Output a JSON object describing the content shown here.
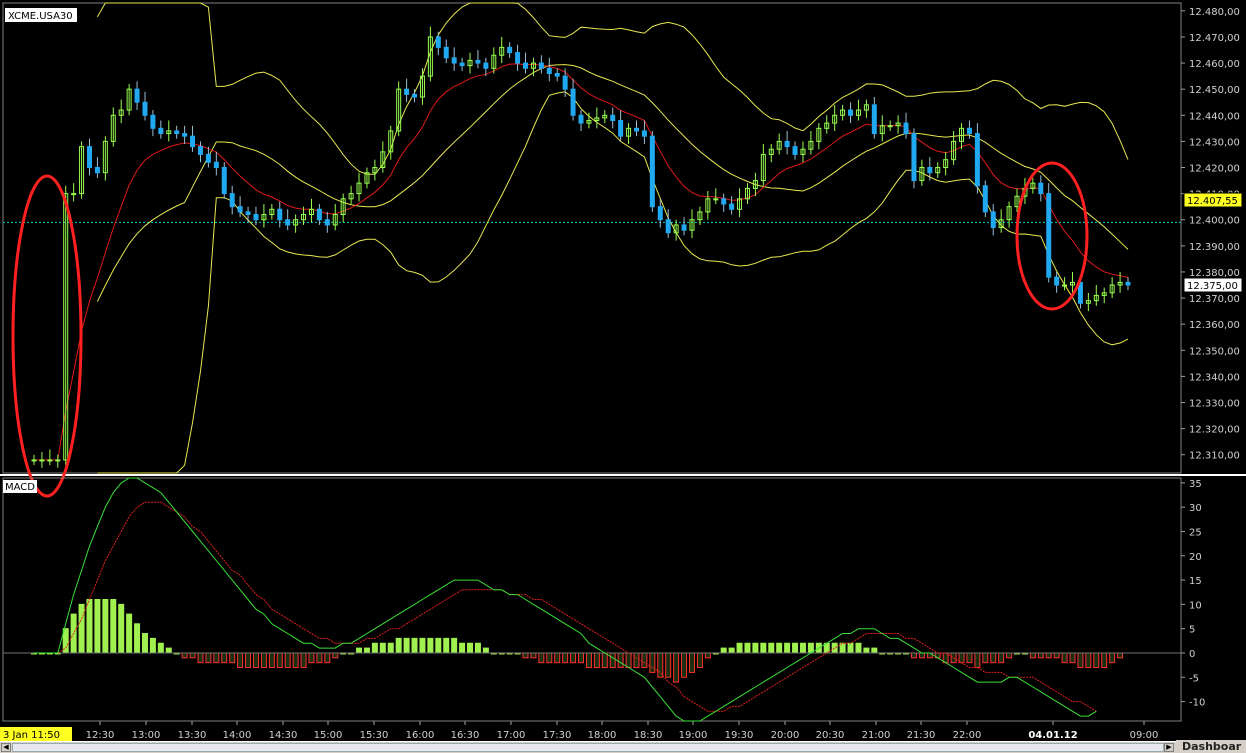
{
  "symbol": "XCME.USA30",
  "indicator_label": "MACD",
  "date_label": "3 Jan 11:50",
  "dashboard_label": "Dashboar",
  "colors": {
    "background": "#000000",
    "bull_candle": "#98ff50",
    "bear_candle": "#20a8f0",
    "ema": "#e01818",
    "bollinger": "#e8e850",
    "reference_line": "#00c8c8",
    "axis_text": "#d0d0d0",
    "macd_line": "#38e038",
    "signal_line": "#e02020",
    "hist_positive": "#a0f050",
    "hist_negative": "#ff3030",
    "annotation": "#ff2020"
  },
  "chart_data": [
    {
      "type": "candlestick",
      "title": "XCME.USA30",
      "ylim": [
        12303,
        12483
      ],
      "yticks": [
        "12.480,00",
        "12.470,00",
        "12.460,00",
        "12.450,00",
        "12.440,00",
        "12.430,00",
        "12.420,00",
        "12.410,00",
        "12.400,00",
        "12.390,00",
        "12.380,00",
        "12.370,00",
        "12.360,00",
        "12.350,00",
        "12.340,00",
        "12.330,00",
        "12.320,00",
        "12.310,00"
      ],
      "xticks": [
        "3 Jan 11:50",
        "12:30",
        "13:00",
        "13:30",
        "14:00",
        "14:30",
        "15:00",
        "15:30",
        "16:00",
        "16:30",
        "17:00",
        "17:30",
        "18:00",
        "18:30",
        "19:00",
        "19:30",
        "20:00",
        "20:30",
        "21:00",
        "21:30",
        "22:00",
        "04.01.12",
        "09:00"
      ],
      "reference_line": 12399,
      "price_labels": [
        {
          "value": 12407.55,
          "text": "12.407,55",
          "style": "yellow"
        },
        {
          "value": 12375.0,
          "text": "12.375,00",
          "style": "white"
        }
      ],
      "series": [
        {
          "name": "Price",
          "kind": "candles",
          "close": [
            12308,
            12308,
            12308,
            12308,
            12410,
            12410,
            12428,
            12420,
            12418,
            12430,
            12440,
            12442,
            12450,
            12445,
            12440,
            12435,
            12433,
            12434,
            12433,
            12432,
            12428,
            12425,
            12422,
            12420,
            12410,
            12405,
            12403,
            12402,
            12400,
            12402,
            12404,
            12400,
            12398,
            12400,
            12402,
            12404,
            12400,
            12398,
            12402,
            12408,
            12410,
            12414,
            12418,
            12420,
            12426,
            12434,
            12450,
            12448,
            12447,
            12455,
            12470,
            12466,
            12462,
            12460,
            12459,
            12461,
            12460,
            12458,
            12463,
            12466,
            12464,
            12460,
            12458,
            12460,
            12458,
            12456,
            12455,
            12450,
            12440,
            12437,
            12438,
            12439,
            12440,
            12438,
            12432,
            12435,
            12434,
            12432,
            12405,
            12400,
            12395,
            12398,
            12396,
            12400,
            12403,
            12408,
            12408,
            12406,
            12404,
            12408,
            12412,
            12415,
            12425,
            12427,
            12430,
            12428,
            12425,
            12427,
            12430,
            12435,
            12437,
            12440,
            12442,
            12440,
            12442,
            12444,
            12433,
            12436,
            12436,
            12437,
            12433,
            12415,
            12420,
            12418,
            12420,
            12423,
            12430,
            12435,
            12433,
            12413,
            12403,
            12397,
            12400,
            12405,
            12409,
            12412,
            12414,
            12410,
            12378,
            12375,
            12375,
            12376,
            12368,
            12369,
            12371,
            12372,
            12375,
            12376,
            12375
          ]
        }
      ]
    },
    {
      "type": "bar",
      "title": "MACD",
      "ylim": [
        -14,
        36
      ],
      "yticks": [
        "35",
        "30",
        "25",
        "20",
        "15",
        "10",
        "5",
        "0",
        "-5",
        "-10"
      ],
      "series": [
        {
          "name": "MACD",
          "kind": "line",
          "values": [
            0,
            0,
            0,
            0,
            6,
            12,
            17,
            22,
            26,
            30,
            33,
            35,
            36,
            36,
            35,
            34,
            33,
            31,
            29,
            27,
            25,
            23,
            21,
            19,
            17,
            15,
            13,
            11,
            9,
            8,
            6,
            5,
            4,
            3,
            2,
            2,
            1,
            1,
            1,
            2,
            2,
            3,
            4,
            5,
            6,
            7,
            8,
            9,
            10,
            11,
            12,
            13,
            14,
            15,
            15,
            15,
            15,
            14,
            13,
            13,
            12,
            12,
            11,
            10,
            9,
            8,
            7,
            6,
            5,
            4,
            2,
            1,
            0,
            -1,
            -2,
            -3,
            -4,
            -5,
            -7,
            -9,
            -11,
            -13,
            -14,
            -14,
            -14,
            -13,
            -12,
            -11,
            -10,
            -9,
            -8,
            -7,
            -6,
            -5,
            -4,
            -3,
            -2,
            -1,
            0,
            1,
            2,
            3,
            4,
            4,
            5,
            5,
            5,
            4,
            3,
            3,
            2,
            1,
            0,
            0,
            -1,
            -2,
            -3,
            -4,
            -5,
            -6,
            -6,
            -6,
            -6,
            -5,
            -5,
            -6,
            -7,
            -8,
            -9,
            -10,
            -11,
            -12,
            -13,
            -13,
            -12
          ]
        },
        {
          "name": "Signal",
          "kind": "line",
          "values": [
            0,
            0,
            0,
            0,
            1,
            4,
            7,
            11,
            15,
            19,
            22,
            25,
            28,
            30,
            31,
            31,
            31,
            30,
            29,
            28,
            26,
            25,
            23,
            21,
            19,
            17,
            16,
            14,
            12,
            11,
            9,
            8,
            7,
            6,
            5,
            4,
            3,
            3,
            2,
            2,
            2,
            2,
            3,
            3,
            4,
            5,
            5,
            6,
            7,
            8,
            9,
            10,
            11,
            12,
            13,
            13,
            13,
            13,
            13,
            13,
            12,
            12,
            12,
            11,
            11,
            10,
            9,
            8,
            7,
            6,
            5,
            4,
            3,
            2,
            1,
            0,
            -1,
            -2,
            -3,
            -4,
            -6,
            -7,
            -9,
            -10,
            -11,
            -12,
            -12,
            -12,
            -11,
            -11,
            -10,
            -9,
            -8,
            -7,
            -6,
            -5,
            -4,
            -3,
            -2,
            -1,
            0,
            1,
            2,
            2,
            3,
            4,
            4,
            4,
            4,
            4,
            3,
            3,
            2,
            1,
            0,
            0,
            -1,
            -2,
            -3,
            -3,
            -4,
            -4,
            -4,
            -5,
            -5,
            -5,
            -5,
            -6,
            -7,
            -8,
            -9,
            -10,
            -10,
            -11,
            -12
          ]
        },
        {
          "name": "Histogram",
          "kind": "bars",
          "values": [
            0,
            0,
            0,
            0,
            5,
            8,
            10,
            11,
            11,
            11,
            11,
            10,
            8,
            6,
            4,
            3,
            2,
            1,
            0,
            -1,
            -1,
            -2,
            -2,
            -2,
            -2,
            -2,
            -3,
            -3,
            -3,
            -3,
            -3,
            -3,
            -3,
            -3,
            -3,
            -2,
            -2,
            -2,
            -1,
            0,
            0,
            1,
            1,
            2,
            2,
            2,
            3,
            3,
            3,
            3,
            3,
            3,
            3,
            3,
            2,
            2,
            2,
            1,
            0,
            0,
            0,
            0,
            -1,
            -1,
            -2,
            -2,
            -2,
            -2,
            -2,
            -2,
            -3,
            -3,
            -3,
            -3,
            -3,
            -3,
            -3,
            -3,
            -4,
            -5,
            -5,
            -6,
            -5,
            -4,
            -3,
            -1,
            0,
            1,
            1,
            2,
            2,
            2,
            2,
            2,
            2,
            2,
            2,
            2,
            2,
            2,
            2,
            2,
            2,
            2,
            2,
            1,
            1,
            0,
            0,
            0,
            0,
            -1,
            -1,
            -1,
            -1,
            -2,
            -2,
            -2,
            -2,
            -3,
            -2,
            -2,
            -2,
            -1,
            0,
            0,
            -1,
            -1,
            -1,
            -1,
            -2,
            -2,
            -3,
            -3,
            -3,
            -3,
            -2,
            -1
          ]
        }
      ]
    }
  ]
}
